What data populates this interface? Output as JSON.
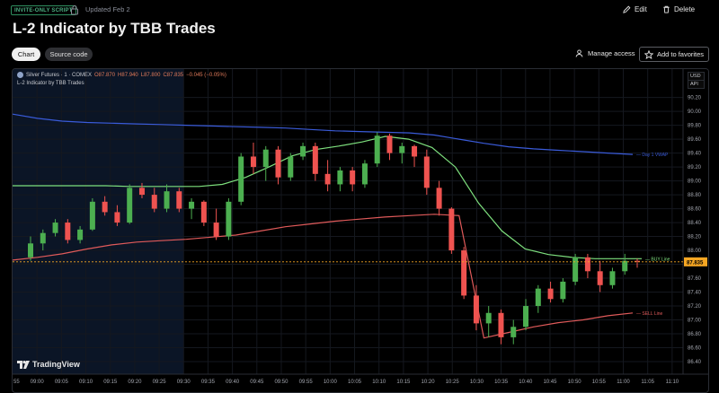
{
  "header": {
    "badge": "INVITE-ONLY SCRIPT",
    "updated": "Updated Feb 2",
    "edit_label": "Edit",
    "delete_label": "Delete",
    "title": "L-2 Indicator by TBB Trades"
  },
  "tabs": {
    "chart": "Chart",
    "source": "Source code"
  },
  "actions": {
    "manage_access": "Manage access",
    "add_favorites": "Add to favorites"
  },
  "chart": {
    "symbol": "Silver Futures · 1 · COMEX",
    "open": "O87.870",
    "high": "H87.940",
    "low": "L87.800",
    "close": "C87.835",
    "change": "−0.045 (−0.05%)",
    "indicator": "L-2 Indicator by TBB Trades",
    "currency": "USD",
    "api": "API",
    "logo": "TradingView"
  },
  "chart_data": {
    "type": "candlestick",
    "ylim": [
      86.4,
      90.35
    ],
    "ytick_labels": [
      "90.20",
      "90.00",
      "89.80",
      "89.60",
      "89.40",
      "89.20",
      "89.00",
      "88.80",
      "88.60",
      "88.40",
      "88.20",
      "88.00",
      "87.80",
      "87.60",
      "87.40",
      "87.20",
      "87.00",
      "86.80",
      "86.60",
      "86.40"
    ],
    "x_labels": [
      "55",
      "09:00",
      "09:05",
      "09:10",
      "09:15",
      "09:20",
      "09:25",
      "09:30",
      "09:35",
      "09:40",
      "09:45",
      "09:50",
      "09:55",
      "10:00",
      "10:05",
      "10:10",
      "10:15",
      "10:20",
      "10:25",
      "10:30",
      "10:35",
      "10:40",
      "10:45",
      "10:50",
      "10:55",
      "11:00",
      "11:05",
      "11:10"
    ],
    "last_price": 87.835,
    "last_price_label": "87.835",
    "colors": {
      "up": "#4caf50",
      "down": "#ef5350",
      "vwap": "#3a5bd9",
      "buy": "#7ee07e",
      "sell": "#e05a5a",
      "price_tag": "#f5a623",
      "session_bg": "#0b1526"
    },
    "series": [
      {
        "name": "Day 1 VWAP",
        "values": [
          89.96,
          89.9,
          89.86,
          89.84,
          89.83,
          89.82,
          89.81,
          89.8,
          89.79,
          89.78,
          89.77,
          89.76,
          89.74,
          89.72,
          89.71,
          89.7,
          89.69,
          89.66,
          89.6,
          89.54,
          89.49,
          89.46,
          89.44,
          89.42,
          89.4,
          89.38
        ]
      },
      {
        "name": "BUY Line",
        "values": [
          88.93,
          88.93,
          88.93,
          88.93,
          88.93,
          88.92,
          88.92,
          88.92,
          88.92,
          88.95,
          89.05,
          89.2,
          89.36,
          89.45,
          89.5,
          89.56,
          89.64,
          89.6,
          89.48,
          89.2,
          88.68,
          88.28,
          88.02,
          87.94,
          87.9,
          87.88,
          87.88,
          87.88
        ]
      },
      {
        "name": "SELL Line",
        "values": [
          87.86,
          87.9,
          87.95,
          88.02,
          88.08,
          88.12,
          88.14,
          88.16,
          88.19,
          88.22,
          88.28,
          88.34,
          88.38,
          88.42,
          88.45,
          88.48,
          88.5,
          88.52,
          88.5,
          86.74,
          86.82,
          86.9,
          86.96,
          87.0,
          87.06,
          87.1
        ]
      }
    ],
    "candles": [
      [
        87.9,
        88.2,
        87.85,
        88.1
      ],
      [
        88.1,
        88.3,
        88.0,
        88.25
      ],
      [
        88.25,
        88.45,
        88.2,
        88.4
      ],
      [
        88.4,
        88.45,
        88.1,
        88.15
      ],
      [
        88.15,
        88.35,
        88.1,
        88.3
      ],
      [
        88.3,
        88.75,
        88.28,
        88.7
      ],
      [
        88.7,
        88.78,
        88.5,
        88.55
      ],
      [
        88.55,
        88.65,
        88.35,
        88.4
      ],
      [
        88.4,
        88.95,
        88.38,
        88.9
      ],
      [
        88.9,
        88.97,
        88.75,
        88.8
      ],
      [
        88.8,
        88.9,
        88.55,
        88.6
      ],
      [
        88.6,
        88.95,
        88.55,
        88.85
      ],
      [
        88.85,
        88.9,
        88.55,
        88.6
      ],
      [
        88.6,
        88.75,
        88.45,
        88.7
      ],
      [
        88.7,
        88.72,
        88.35,
        88.4
      ],
      [
        88.4,
        88.6,
        88.15,
        88.2
      ],
      [
        88.2,
        88.75,
        88.15,
        88.7
      ],
      [
        88.7,
        89.4,
        88.65,
        89.35
      ],
      [
        89.35,
        89.55,
        89.1,
        89.2
      ],
      [
        89.2,
        89.5,
        89.0,
        89.45
      ],
      [
        89.45,
        89.5,
        88.95,
        89.05
      ],
      [
        89.05,
        89.4,
        89.0,
        89.35
      ],
      [
        89.35,
        89.55,
        89.3,
        89.5
      ],
      [
        89.5,
        89.55,
        89.0,
        89.1
      ],
      [
        89.1,
        89.3,
        88.85,
        88.95
      ],
      [
        88.95,
        89.2,
        88.85,
        89.15
      ],
      [
        89.15,
        89.2,
        88.85,
        88.95
      ],
      [
        88.95,
        89.3,
        88.9,
        89.25
      ],
      [
        89.25,
        89.7,
        89.2,
        89.65
      ],
      [
        89.65,
        89.68,
        89.3,
        89.4
      ],
      [
        89.4,
        89.55,
        89.25,
        89.5
      ],
      [
        89.5,
        89.52,
        89.2,
        89.35
      ],
      [
        89.35,
        89.45,
        88.8,
        88.9
      ],
      [
        88.9,
        89.0,
        88.5,
        88.6
      ],
      [
        88.6,
        88.62,
        87.95,
        88.0
      ],
      [
        88.0,
        88.05,
        87.3,
        87.35
      ],
      [
        87.35,
        87.5,
        86.85,
        86.95
      ],
      [
        86.95,
        87.2,
        86.75,
        87.1
      ],
      [
        87.1,
        87.15,
        86.65,
        86.75
      ],
      [
        86.75,
        87.0,
        86.65,
        86.9
      ],
      [
        86.9,
        87.3,
        86.85,
        87.2
      ],
      [
        87.2,
        87.5,
        87.1,
        87.45
      ],
      [
        87.45,
        87.55,
        87.25,
        87.3
      ],
      [
        87.3,
        87.6,
        87.25,
        87.55
      ],
      [
        87.55,
        87.95,
        87.5,
        87.9
      ],
      [
        87.9,
        87.95,
        87.6,
        87.7
      ],
      [
        87.7,
        87.85,
        87.4,
        87.5
      ],
      [
        87.5,
        87.75,
        87.45,
        87.7
      ],
      [
        87.7,
        87.95,
        87.65,
        87.85
      ],
      [
        87.85,
        87.88,
        87.75,
        87.84
      ]
    ]
  }
}
